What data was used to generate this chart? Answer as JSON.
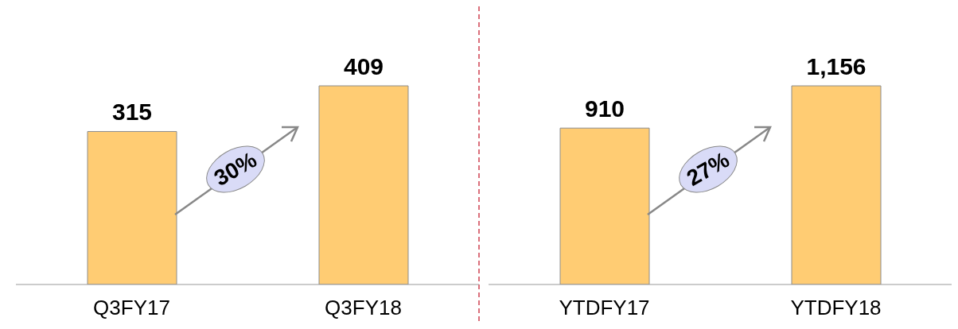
{
  "chart_data": [
    {
      "type": "bar",
      "categories": [
        "Q3FY17",
        "Q3FY18"
      ],
      "values": [
        315,
        409
      ],
      "value_labels": [
        "315",
        "409"
      ],
      "color": "#ffcc73",
      "tick_labels": "x",
      "grid": false,
      "legend": false,
      "annotations": [
        "30%"
      ]
    },
    {
      "type": "bar",
      "categories": [
        "YTDFY17",
        "YTDFY18"
      ],
      "values": [
        910,
        1156
      ],
      "value_labels": [
        "910",
        "1,156"
      ],
      "color": "#ffcc73",
      "tick_labels": "x",
      "grid": false,
      "legend": false,
      "annotations": [
        "27%"
      ]
    }
  ]
}
